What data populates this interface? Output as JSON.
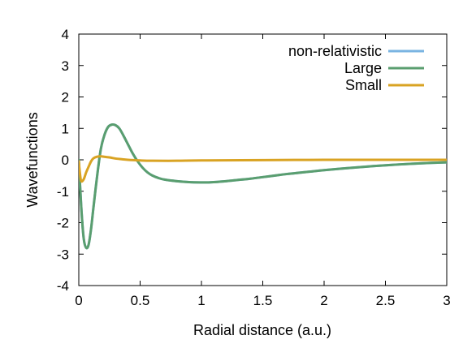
{
  "chart_data": {
    "type": "line",
    "title": "",
    "xlabel": "Radial distance (a.u.)",
    "ylabel": "Wavefunctions",
    "xlim": [
      0,
      3
    ],
    "ylim": [
      -4,
      4
    ],
    "xticks": [
      0,
      0.5,
      1,
      1.5,
      2,
      2.5,
      3
    ],
    "xtick_labels": [
      "0",
      "0.5",
      "1",
      "1.5",
      "2",
      "2.5",
      "3"
    ],
    "yticks": [
      -4,
      -3,
      -2,
      -1,
      0,
      1,
      2,
      3,
      4
    ],
    "ytick_labels": [
      "-4",
      "-3",
      "-2",
      "-1",
      "0",
      "1",
      "2",
      "3",
      "4"
    ],
    "grid": false,
    "legend_position": "top-right",
    "series": [
      {
        "name": "non-relativistic",
        "color": "#7ab4e2",
        "x": [
          0,
          0.02,
          0.04,
          0.06,
          0.08,
          0.1,
          0.12,
          0.15,
          0.18,
          0.21,
          0.24,
          0.27,
          0.3,
          0.33,
          0.36,
          0.4,
          0.44,
          0.48,
          0.52,
          0.56,
          0.6,
          0.65,
          0.7,
          0.8,
          0.9,
          1.0,
          1.05,
          1.1,
          1.2,
          1.3,
          1.4,
          1.5,
          1.6,
          1.7,
          1.8,
          1.9,
          2.0,
          2.2,
          2.4,
          2.6,
          2.8,
          3.0
        ],
        "y": [
          0,
          -1.5,
          -2.5,
          -2.8,
          -2.7,
          -2.2,
          -1.5,
          -0.5,
          0.35,
          0.8,
          1.05,
          1.12,
          1.1,
          1.0,
          0.8,
          0.5,
          0.2,
          -0.05,
          -0.25,
          -0.4,
          -0.5,
          -0.58,
          -0.63,
          -0.68,
          -0.71,
          -0.72,
          -0.72,
          -0.71,
          -0.68,
          -0.64,
          -0.6,
          -0.55,
          -0.5,
          -0.45,
          -0.41,
          -0.37,
          -0.33,
          -0.26,
          -0.2,
          -0.15,
          -0.11,
          -0.08
        ]
      },
      {
        "name": "Large",
        "color": "#5a9e6f",
        "x": [
          0,
          0.02,
          0.04,
          0.06,
          0.08,
          0.1,
          0.12,
          0.15,
          0.18,
          0.21,
          0.24,
          0.27,
          0.3,
          0.33,
          0.36,
          0.4,
          0.44,
          0.48,
          0.52,
          0.56,
          0.6,
          0.65,
          0.7,
          0.8,
          0.9,
          1.0,
          1.05,
          1.1,
          1.2,
          1.3,
          1.4,
          1.5,
          1.6,
          1.7,
          1.8,
          1.9,
          2.0,
          2.2,
          2.4,
          2.6,
          2.8,
          3.0
        ],
        "y": [
          0,
          -1.5,
          -2.5,
          -2.8,
          -2.7,
          -2.2,
          -1.5,
          -0.5,
          0.35,
          0.8,
          1.05,
          1.12,
          1.1,
          1.0,
          0.8,
          0.5,
          0.2,
          -0.05,
          -0.25,
          -0.4,
          -0.5,
          -0.58,
          -0.63,
          -0.68,
          -0.71,
          -0.72,
          -0.72,
          -0.71,
          -0.68,
          -0.64,
          -0.6,
          -0.55,
          -0.5,
          -0.45,
          -0.41,
          -0.37,
          -0.33,
          -0.26,
          -0.2,
          -0.15,
          -0.11,
          -0.08
        ]
      },
      {
        "name": "Small",
        "color": "#d9a323",
        "x": [
          0,
          0.01,
          0.02,
          0.04,
          0.06,
          0.08,
          0.1,
          0.12,
          0.15,
          0.18,
          0.22,
          0.26,
          0.3,
          0.35,
          0.4,
          0.5,
          0.6,
          0.8,
          1.0,
          1.5,
          2.0,
          2.5,
          3.0
        ],
        "y": [
          -0.05,
          -0.45,
          -0.68,
          -0.62,
          -0.4,
          -0.22,
          -0.05,
          0.05,
          0.1,
          0.11,
          0.09,
          0.07,
          0.04,
          0.02,
          0.0,
          -0.02,
          -0.03,
          -0.03,
          -0.02,
          -0.01,
          0.0,
          0.0,
          0.0
        ]
      }
    ]
  }
}
